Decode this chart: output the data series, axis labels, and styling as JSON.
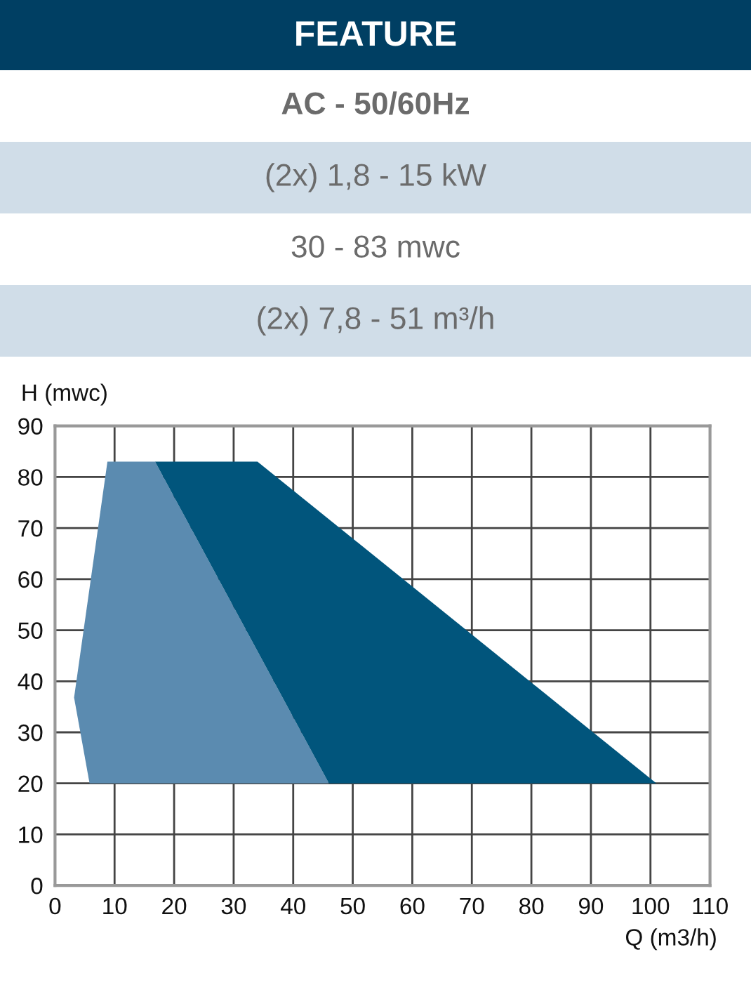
{
  "chart_data": {
    "type": "area",
    "title": "FEATURE",
    "annotations": [
      "AC - 50/60Hz",
      "(2x) 1,8 - 15 kW",
      "30 - 83 mwc",
      "(2x) 7,8 - 51 m³/h"
    ],
    "xlabel": "Q (m3/h)",
    "ylabel": "H (mwc)",
    "xlim": [
      0,
      110
    ],
    "xticks": [
      0,
      10,
      20,
      30,
      40,
      50,
      60,
      70,
      80,
      90,
      100,
      110
    ],
    "ylim": [
      0,
      90
    ],
    "yticks": [
      0,
      10,
      20,
      30,
      40,
      50,
      60,
      70,
      80,
      90
    ],
    "grid": true,
    "series": [
      {
        "color": "#5b8bb0",
        "x": [
          3.2,
          8.8,
          16.8,
          46,
          5.8
        ],
        "values": [
          36.8,
          83,
          83,
          20,
          20
        ]
      },
      {
        "color": "#01557c",
        "x": [
          16.8,
          34,
          101,
          46
        ],
        "values": [
          83,
          83,
          20,
          20
        ]
      }
    ]
  }
}
